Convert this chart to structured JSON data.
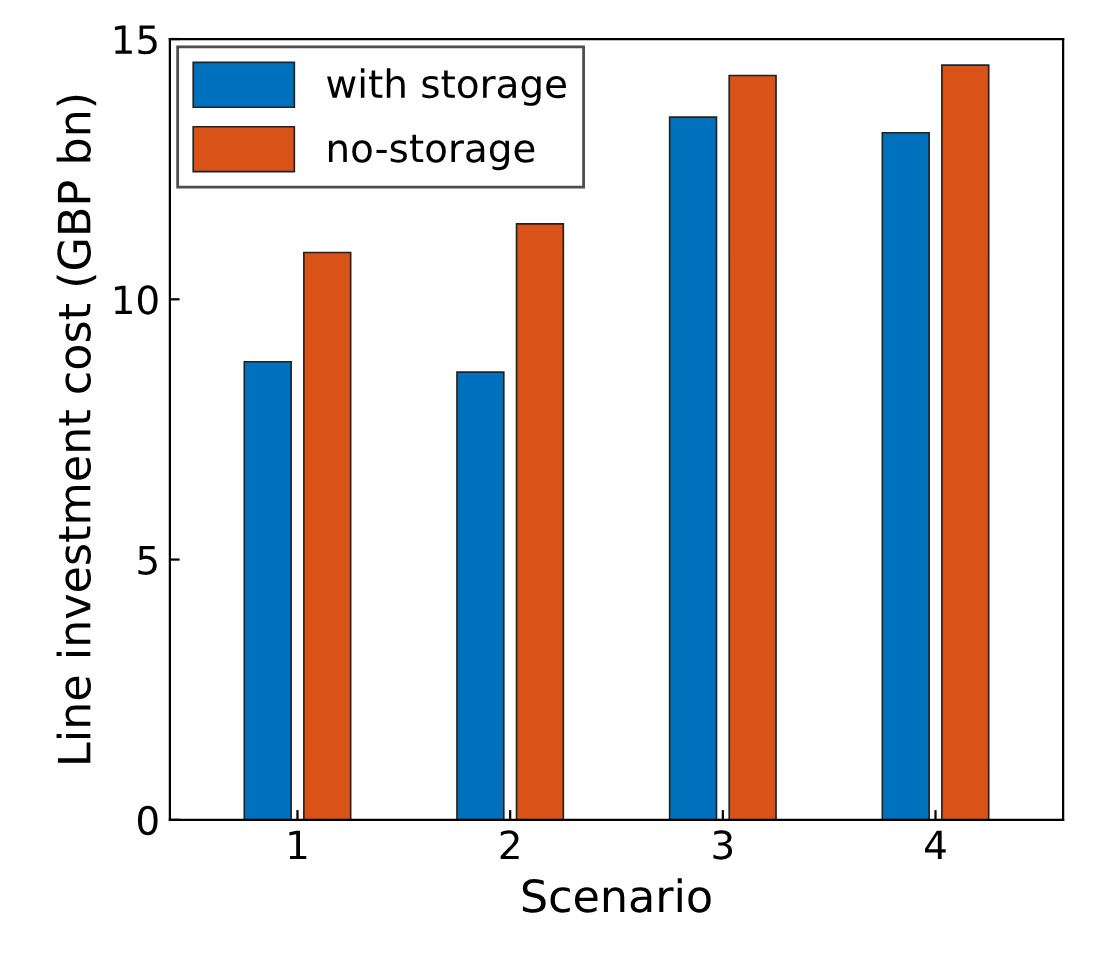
{
  "chart_data": {
    "type": "bar",
    "xlabel": "Scenario",
    "ylabel": "Line investment cost (GBP bn)",
    "categories": [
      "1",
      "2",
      "3",
      "4"
    ],
    "series": [
      {
        "name": "with storage",
        "color": "#0072bd",
        "values": [
          8.8,
          8.6,
          13.5,
          13.2
        ]
      },
      {
        "name": "no-storage",
        "color": "#d95319",
        "values": [
          10.9,
          11.45,
          14.3,
          14.5
        ]
      }
    ],
    "ylim": [
      0,
      15
    ],
    "yticks": [
      0,
      5,
      10,
      15
    ],
    "grid": false,
    "legend": "top left"
  }
}
